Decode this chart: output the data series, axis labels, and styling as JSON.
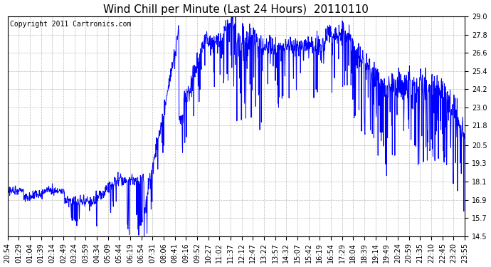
{
  "title": "Wind Chill per Minute (Last 24 Hours)  20110110",
  "copyright": "Copyright 2011 Cartronics.com",
  "line_color": "#0000ff",
  "background_color": "#ffffff",
  "plot_bg_color": "#ffffff",
  "grid_color": "#aaaaaa",
  "ylim": [
    14.5,
    29.0
  ],
  "yticks": [
    14.5,
    15.7,
    16.9,
    18.1,
    19.3,
    20.5,
    21.8,
    23.0,
    24.2,
    25.4,
    26.6,
    27.8,
    29.0
  ],
  "xtick_labels": [
    "20:54",
    "01:29",
    "01:04",
    "01:39",
    "02:14",
    "02:49",
    "03:24",
    "03:59",
    "04:34",
    "05:09",
    "05:44",
    "06:19",
    "06:54",
    "07:31",
    "08:06",
    "08:41",
    "09:16",
    "09:52",
    "10:27",
    "11:02",
    "11:37",
    "12:12",
    "12:47",
    "13:22",
    "13:57",
    "14:32",
    "15:07",
    "15:42",
    "16:19",
    "16:54",
    "17:29",
    "18:04",
    "18:39",
    "19:14",
    "19:49",
    "20:24",
    "20:59",
    "21:35",
    "22:10",
    "22:45",
    "23:20",
    "23:55"
  ],
  "title_fontsize": 11,
  "tick_fontsize": 7,
  "copyright_fontsize": 7
}
